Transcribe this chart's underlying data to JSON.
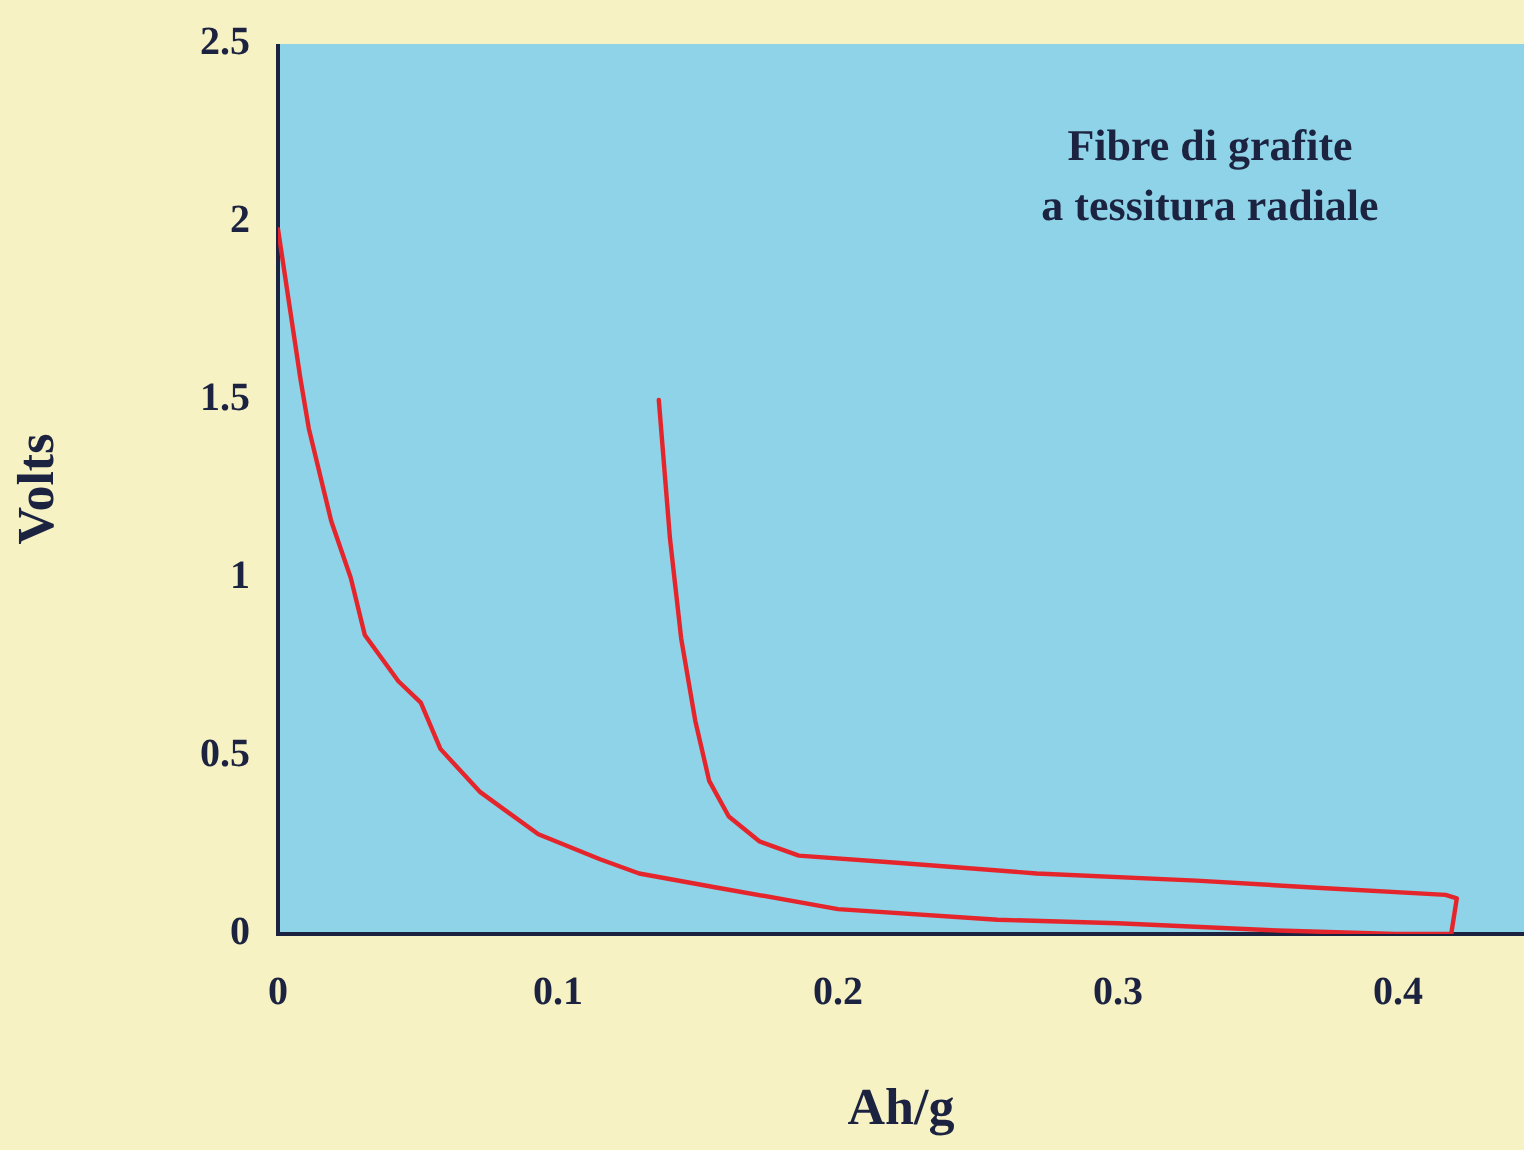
{
  "chart_data": {
    "type": "line",
    "xlabel": "Ah/g",
    "ylabel": "Volts",
    "annotations": [
      "Fibre di grafite\na tessitura radiale"
    ],
    "x": [
      0,
      0.008,
      0.011,
      0.019,
      0.026,
      0.031,
      0.043,
      0.051,
      0.058,
      0.072,
      0.093,
      0.115,
      0.129,
      0.157,
      0.2,
      0.257,
      0.3,
      0.357,
      0.399,
      0.419,
      0.421,
      0.417,
      0.371,
      0.328,
      0.271,
      0.221,
      0.186,
      0.172,
      0.161,
      0.154,
      0.149,
      0.144,
      0.14,
      0.136
    ],
    "series": [
      {
        "color": "#e4262c",
        "values": [
          1.98,
          1.56,
          1.42,
          1.16,
          1.0,
          0.84,
          0.71,
          0.65,
          0.52,
          0.4,
          0.28,
          0.21,
          0.17,
          0.13,
          0.07,
          0.04,
          0.03,
          0.01,
          0,
          0,
          0.1,
          0.11,
          0.13,
          0.15,
          0.17,
          0.2,
          0.22,
          0.26,
          0.33,
          0.43,
          0.6,
          0.83,
          1.11,
          1.5
        ]
      }
    ],
    "xlim": [
      0,
      0.445
    ],
    "ylim": [
      0,
      2.5
    ],
    "xticks": [
      0,
      0.1,
      0.2,
      0.3,
      0.4
    ],
    "yticks": [
      0,
      0.5,
      1,
      1.5,
      2,
      2.5
    ],
    "marker": "none",
    "line_style": "solid",
    "grid": false,
    "legend": false
  }
}
